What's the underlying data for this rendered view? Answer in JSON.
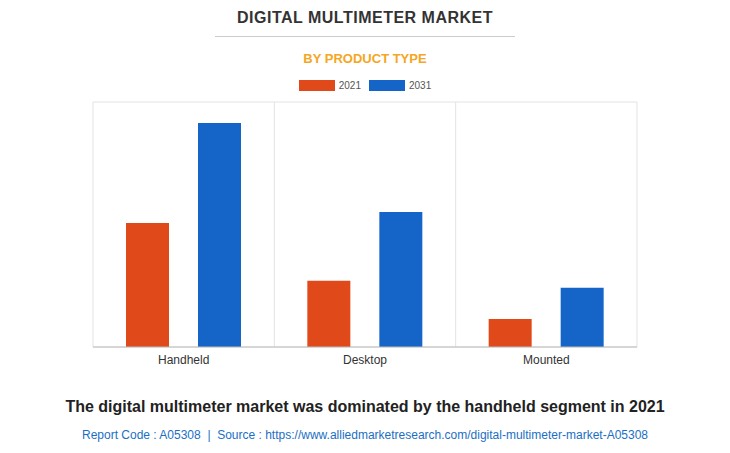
{
  "chart_data": {
    "type": "bar",
    "title": "DIGITAL MULTIMETER MARKET",
    "subtitle": "BY PRODUCT TYPE",
    "categories": [
      "Handheld",
      "Desktop",
      "Mounted"
    ],
    "series": [
      {
        "name": "2021",
        "color": "#e04a1a",
        "values": [
          3.54,
          1.89,
          0.8
        ]
      },
      {
        "name": "2031",
        "color": "#1565c8",
        "values": [
          6.4,
          3.86,
          1.69
        ]
      }
    ],
    "ylim": [
      0,
      7
    ],
    "yticks": [
      0,
      1,
      2,
      3,
      4,
      5,
      6,
      7
    ],
    "grid": true,
    "tick_labels": "x",
    "annotations": [
      "The digital multimeter market was dominated by the handheld segment in 2021",
      "Report Code : A05308  |  Source : https://www.alliedmarketresearch.com/digital-multimeter-market-A05308"
    ]
  }
}
